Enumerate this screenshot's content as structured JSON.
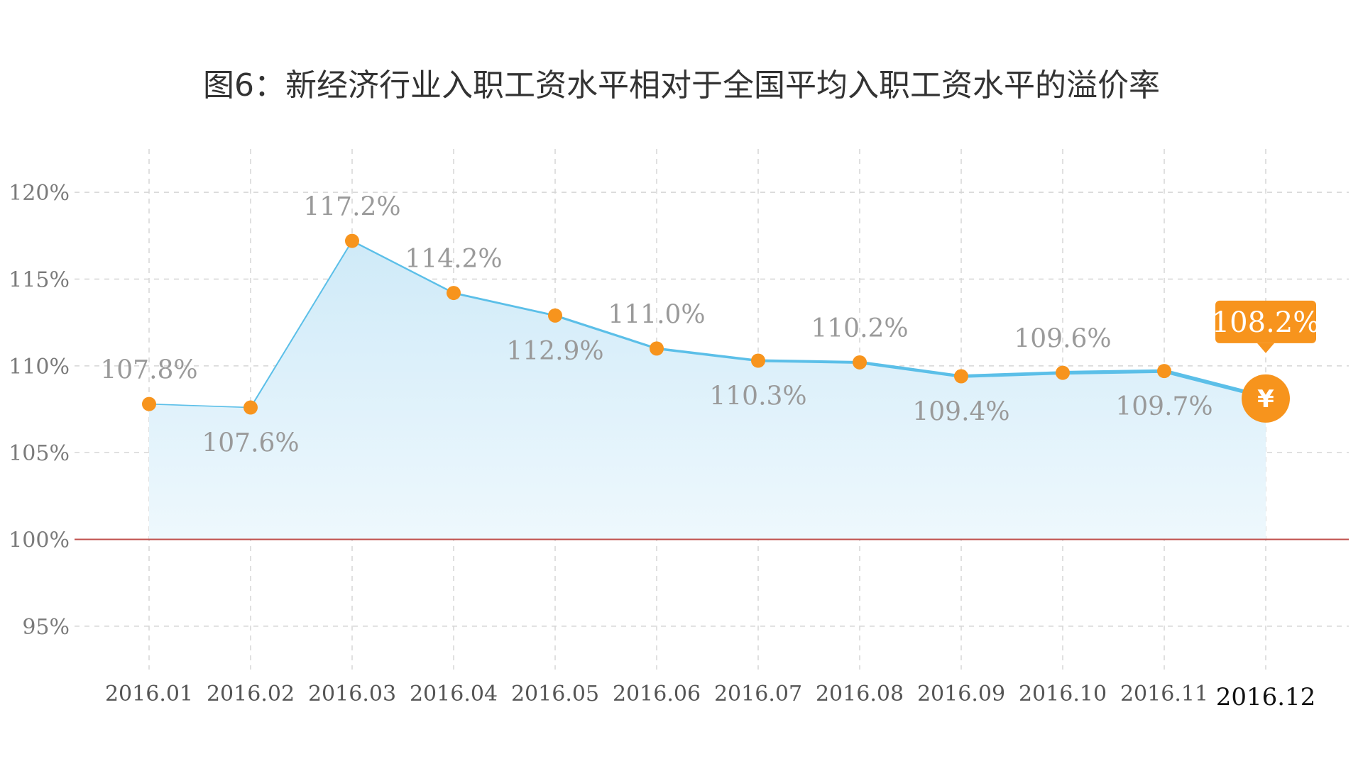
{
  "chart_data": {
    "type": "area",
    "title": "图6：新经济行业入职工资水平相对于全国平均入职工资水平的溢价率",
    "categories": [
      "2016.01",
      "2016.02",
      "2016.03",
      "2016.04",
      "2016.05",
      "2016.06",
      "2016.07",
      "2016.08",
      "2016.09",
      "2016.10",
      "2016.11",
      "2016.12"
    ],
    "values": [
      107.8,
      107.6,
      117.2,
      114.2,
      112.9,
      111.0,
      110.3,
      110.2,
      109.4,
      109.6,
      109.7,
      108.2
    ],
    "labels": [
      "107.8%",
      "107.6%",
      "117.2%",
      "114.2%",
      "112.9%",
      "111.0%",
      "110.3%",
      "110.2%",
      "109.4%",
      "109.6%",
      "109.7%",
      "108.2%"
    ],
    "label_position": [
      "above",
      "below",
      "above",
      "above",
      "below",
      "above",
      "below",
      "above",
      "below",
      "above",
      "below",
      "above"
    ],
    "yticks": [
      95,
      100,
      105,
      110,
      115,
      120
    ],
    "ytick_labels": [
      "95%",
      "100%",
      "105%",
      "110%",
      "115%",
      "120%"
    ],
    "ylim": [
      92.5,
      122.5
    ],
    "baseline": 100,
    "xlabel": "",
    "ylabel": "",
    "grid": true,
    "highlight_index": 11,
    "highlight_icon": "yen-coin-icon",
    "highlight_glyph": "¥",
    "colors": {
      "line": "#5bbfe8",
      "fill_top": "#cfeaf8",
      "fill_bottom": "#eef8fd",
      "marker": "#f7941d",
      "baseline": "#c0504d",
      "grid": "#d5d5d5"
    }
  }
}
